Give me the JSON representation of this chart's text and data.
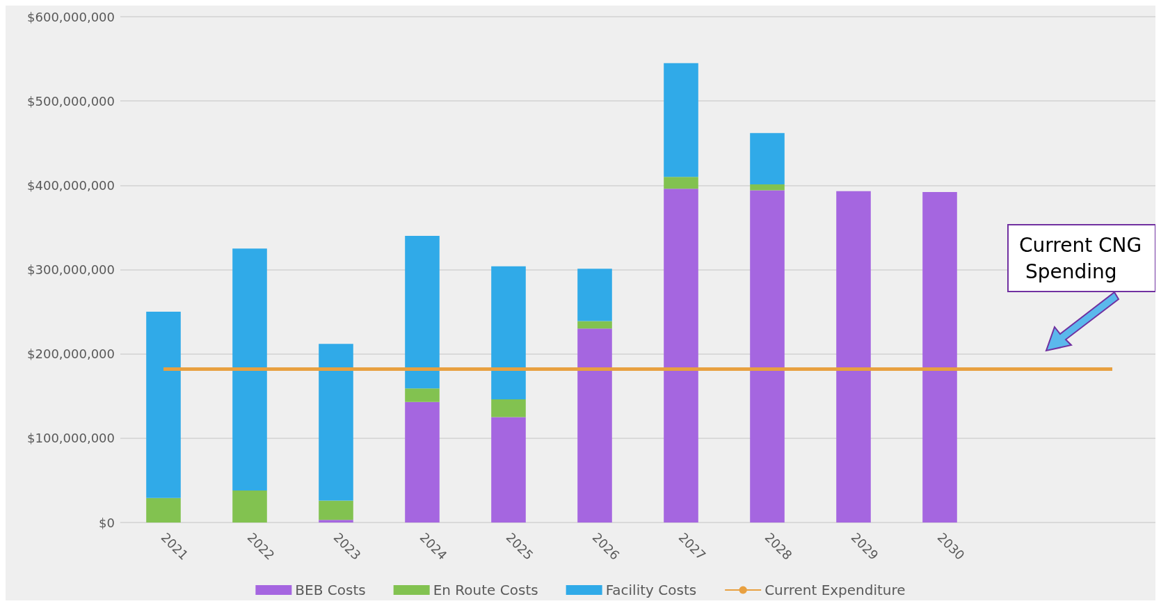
{
  "chart_data": {
    "type": "bar",
    "stacked": true,
    "categories": [
      "2021",
      "2022",
      "2023",
      "2024",
      "2025",
      "2026",
      "2027",
      "2028",
      "2029",
      "2030",
      null,
      null
    ],
    "series": [
      {
        "name": "BEB Costs",
        "color": "#a566e0",
        "values": [
          0,
          0,
          3000000,
          143000000,
          125000000,
          230000000,
          396000000,
          394000000,
          393000000,
          392000000,
          null,
          null
        ]
      },
      {
        "name": "En Route Costs",
        "color": "#82c250",
        "values": [
          29000000,
          38000000,
          23000000,
          16000000,
          21000000,
          9000000,
          14000000,
          7000000,
          null,
          null,
          null,
          null
        ]
      },
      {
        "name": "Facility Costs",
        "color": "#30aae8",
        "values": [
          221000000,
          287000000,
          186000000,
          181000000,
          158000000,
          62000000,
          135000000,
          61000000,
          null,
          null,
          null,
          null
        ]
      },
      {
        "name": "Current Expenditure",
        "type": "line",
        "color": "#e8a040",
        "marker": "none",
        "values": [
          182000000,
          182000000,
          182000000,
          182000000,
          182000000,
          182000000,
          182000000,
          182000000,
          182000000,
          182000000,
          182000000,
          182000000
        ]
      }
    ],
    "ylim": [
      0,
      600000000
    ],
    "yticks": [
      {
        "value": 0,
        "label": "$0"
      },
      {
        "value": 100000000,
        "label": "$100,000,000"
      },
      {
        "value": 200000000,
        "label": "$200,000,000"
      },
      {
        "value": 300000000,
        "label": "$300,000,000"
      },
      {
        "value": 400000000,
        "label": "$400,000,000"
      },
      {
        "value": 500000000,
        "label": "$500,000,000"
      },
      {
        "value": 600000000,
        "label": "$600,000,000"
      }
    ],
    "grid": "y",
    "legend": "bottom",
    "annotations": [
      "Current CNG Spending"
    ]
  }
}
